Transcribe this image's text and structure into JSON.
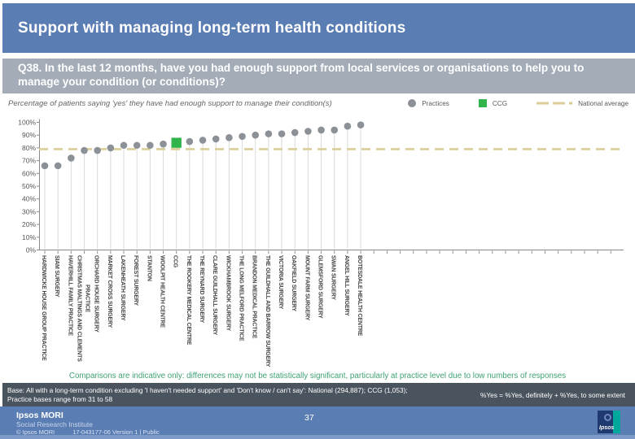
{
  "slide": {
    "title": "Support with managing long-term health conditions",
    "question": "Q38. In the last 12 months, have you had enough support from local services or organisations to help you to manage your condition (or conditions)?"
  },
  "chart": {
    "subtitle": "Percentage of patients saying 'yes' they have had enough support to manage their condition(s)",
    "legend": {
      "practices": "Practices",
      "ccg": "CCG",
      "national": "National average"
    }
  },
  "chart_data": {
    "type": "scatter",
    "title": "Percentage of patients saying 'yes' they have had enough support to manage their condition(s)",
    "categories": [
      "HARDWICKE HOUSE GROUP PRACTICE",
      "SIAM SURGERY",
      "HAVERHILL FAMILY PRACTICE",
      "CHRISTMAS MALTINGS AND CLEMENTS\nPRACTICE",
      "ORCHARD HOUSE SURGERY",
      "MARKET CROSS SURGERY",
      "LAKENHEATH SURGERY",
      "FOREST SURGERY",
      "STANTON",
      "WOOLPIT HEALTH CENTRE",
      "CCG",
      "THE ROOKERY MEDICAL CENTRE",
      "THE REYNARD SURGERY",
      "CLARE GUILDHALL SURGERY",
      "WICKHAMBROOK SURGERY",
      "THE LONG MELFORD PRACTICE",
      "BRANDON MEDICAL PRACTICE",
      "THE GUILDHALL AND BARROW SURGERY",
      "VICTORIA SURGERY",
      "OAKFIELD SURGERY",
      "MOUNT FARM SURGERY",
      "GLEMSFORD SURGERY",
      "SWAN SURGERY",
      "ANGEL HILL SURGERY",
      "BOTESDALE HEALTH CENTRE"
    ],
    "values": [
      66,
      66,
      72,
      78,
      78,
      80,
      82,
      82,
      82,
      83,
      84,
      85,
      86,
      87,
      88,
      89,
      90,
      91,
      91,
      92,
      93,
      94,
      94,
      97,
      98
    ],
    "highlight_category": "CCG",
    "national_average": 79,
    "ylabel": "",
    "xlabel": "",
    "ylim": [
      0,
      100
    ],
    "ytick_step": 10,
    "ytick_suffix": "%",
    "grid": "off",
    "legend_position": "top-right",
    "colors": {
      "practice": "#8b9196",
      "ccg": "#31b44b",
      "national": "#dbcd97"
    }
  },
  "footnotes": {
    "comparison": "Comparisons are indicative only: differences may not be statistically significant, particularly at practice level due to low numbers of responses",
    "base_line1": "Base: All with a long-term condition excluding 'I haven't needed support' and 'Don't know / can't say': National (294,887); CCG (1,053);",
    "base_line2": "Practice bases range from 31 to 58",
    "yes_note": "%Yes = %Yes, definitely + %Yes, to some extent"
  },
  "footer": {
    "brand": "Ipsos MORI",
    "brand_sub": "Social Research Institute",
    "copyright": "© Ipsos MORI",
    "doc_ref": "17-043177-06 Version 1 | Public",
    "page_number": "37",
    "logo_word": "Ipsos"
  },
  "theme": {
    "header_blue": "#5a7db4",
    "question_gray": "#a4acb8",
    "note_green": "#3fa173",
    "base_bar_dark": "#4a545f",
    "footer_stripe": "#7d9ac6"
  }
}
